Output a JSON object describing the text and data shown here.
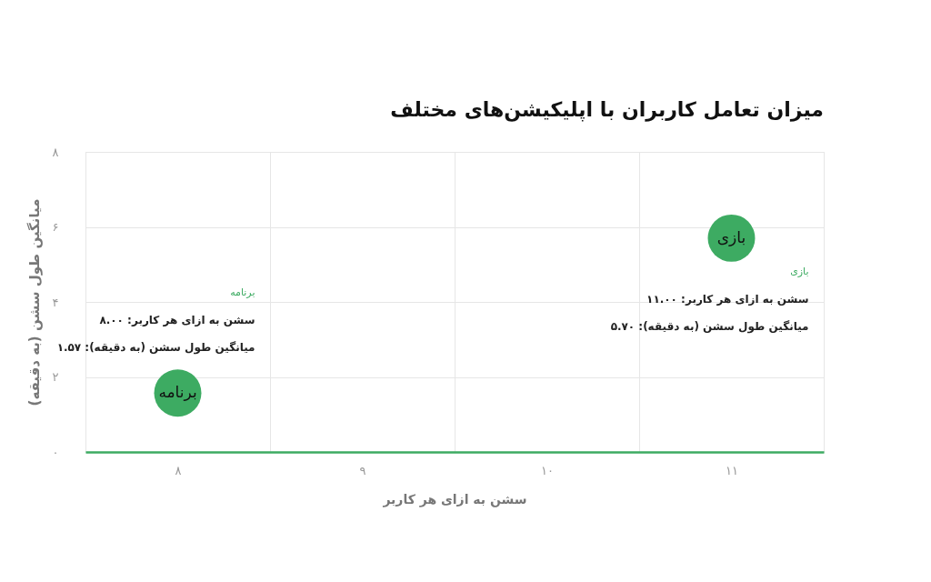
{
  "chart_data": {
    "type": "scatter",
    "title": "میزان تعامل کاربران با اپلیکیشن‌های مختلف",
    "xlabel": "سشن به ازای هر کاربر",
    "ylabel": "میانگین طول سشن (به دقیقه)",
    "categories": [
      "۸",
      "۹",
      "۱۰",
      "۱۱"
    ],
    "series": [
      {
        "name": "برنامه",
        "color": "#3dab62",
        "x": [
          "۸"
        ],
        "values": [
          1.57
        ]
      },
      {
        "name": "بازی",
        "color": "#3dab62",
        "x": [
          "۱۱"
        ],
        "values": [
          5.7
        ]
      }
    ],
    "ylim": [
      0,
      8
    ],
    "yticks": [
      {
        "value": 0,
        "label": "۰"
      },
      {
        "value": 2,
        "label": "۲"
      },
      {
        "value": 4,
        "label": "۴"
      },
      {
        "value": 6,
        "label": "۶"
      },
      {
        "value": 8,
        "label": "۸"
      }
    ],
    "annotations": [
      "برنامه",
      "سشن به ازای هر کاربر: ۸.۰۰",
      "میانگین طول سشن (به دقیقه): ۱.۵۷",
      "بازی",
      "سشن به ازای هر کاربر: ۱۱.۰۰",
      "میانگین طول سشن (به دقیقه): ۵.۷۰"
    ],
    "grid": true,
    "marker": "circle"
  }
}
